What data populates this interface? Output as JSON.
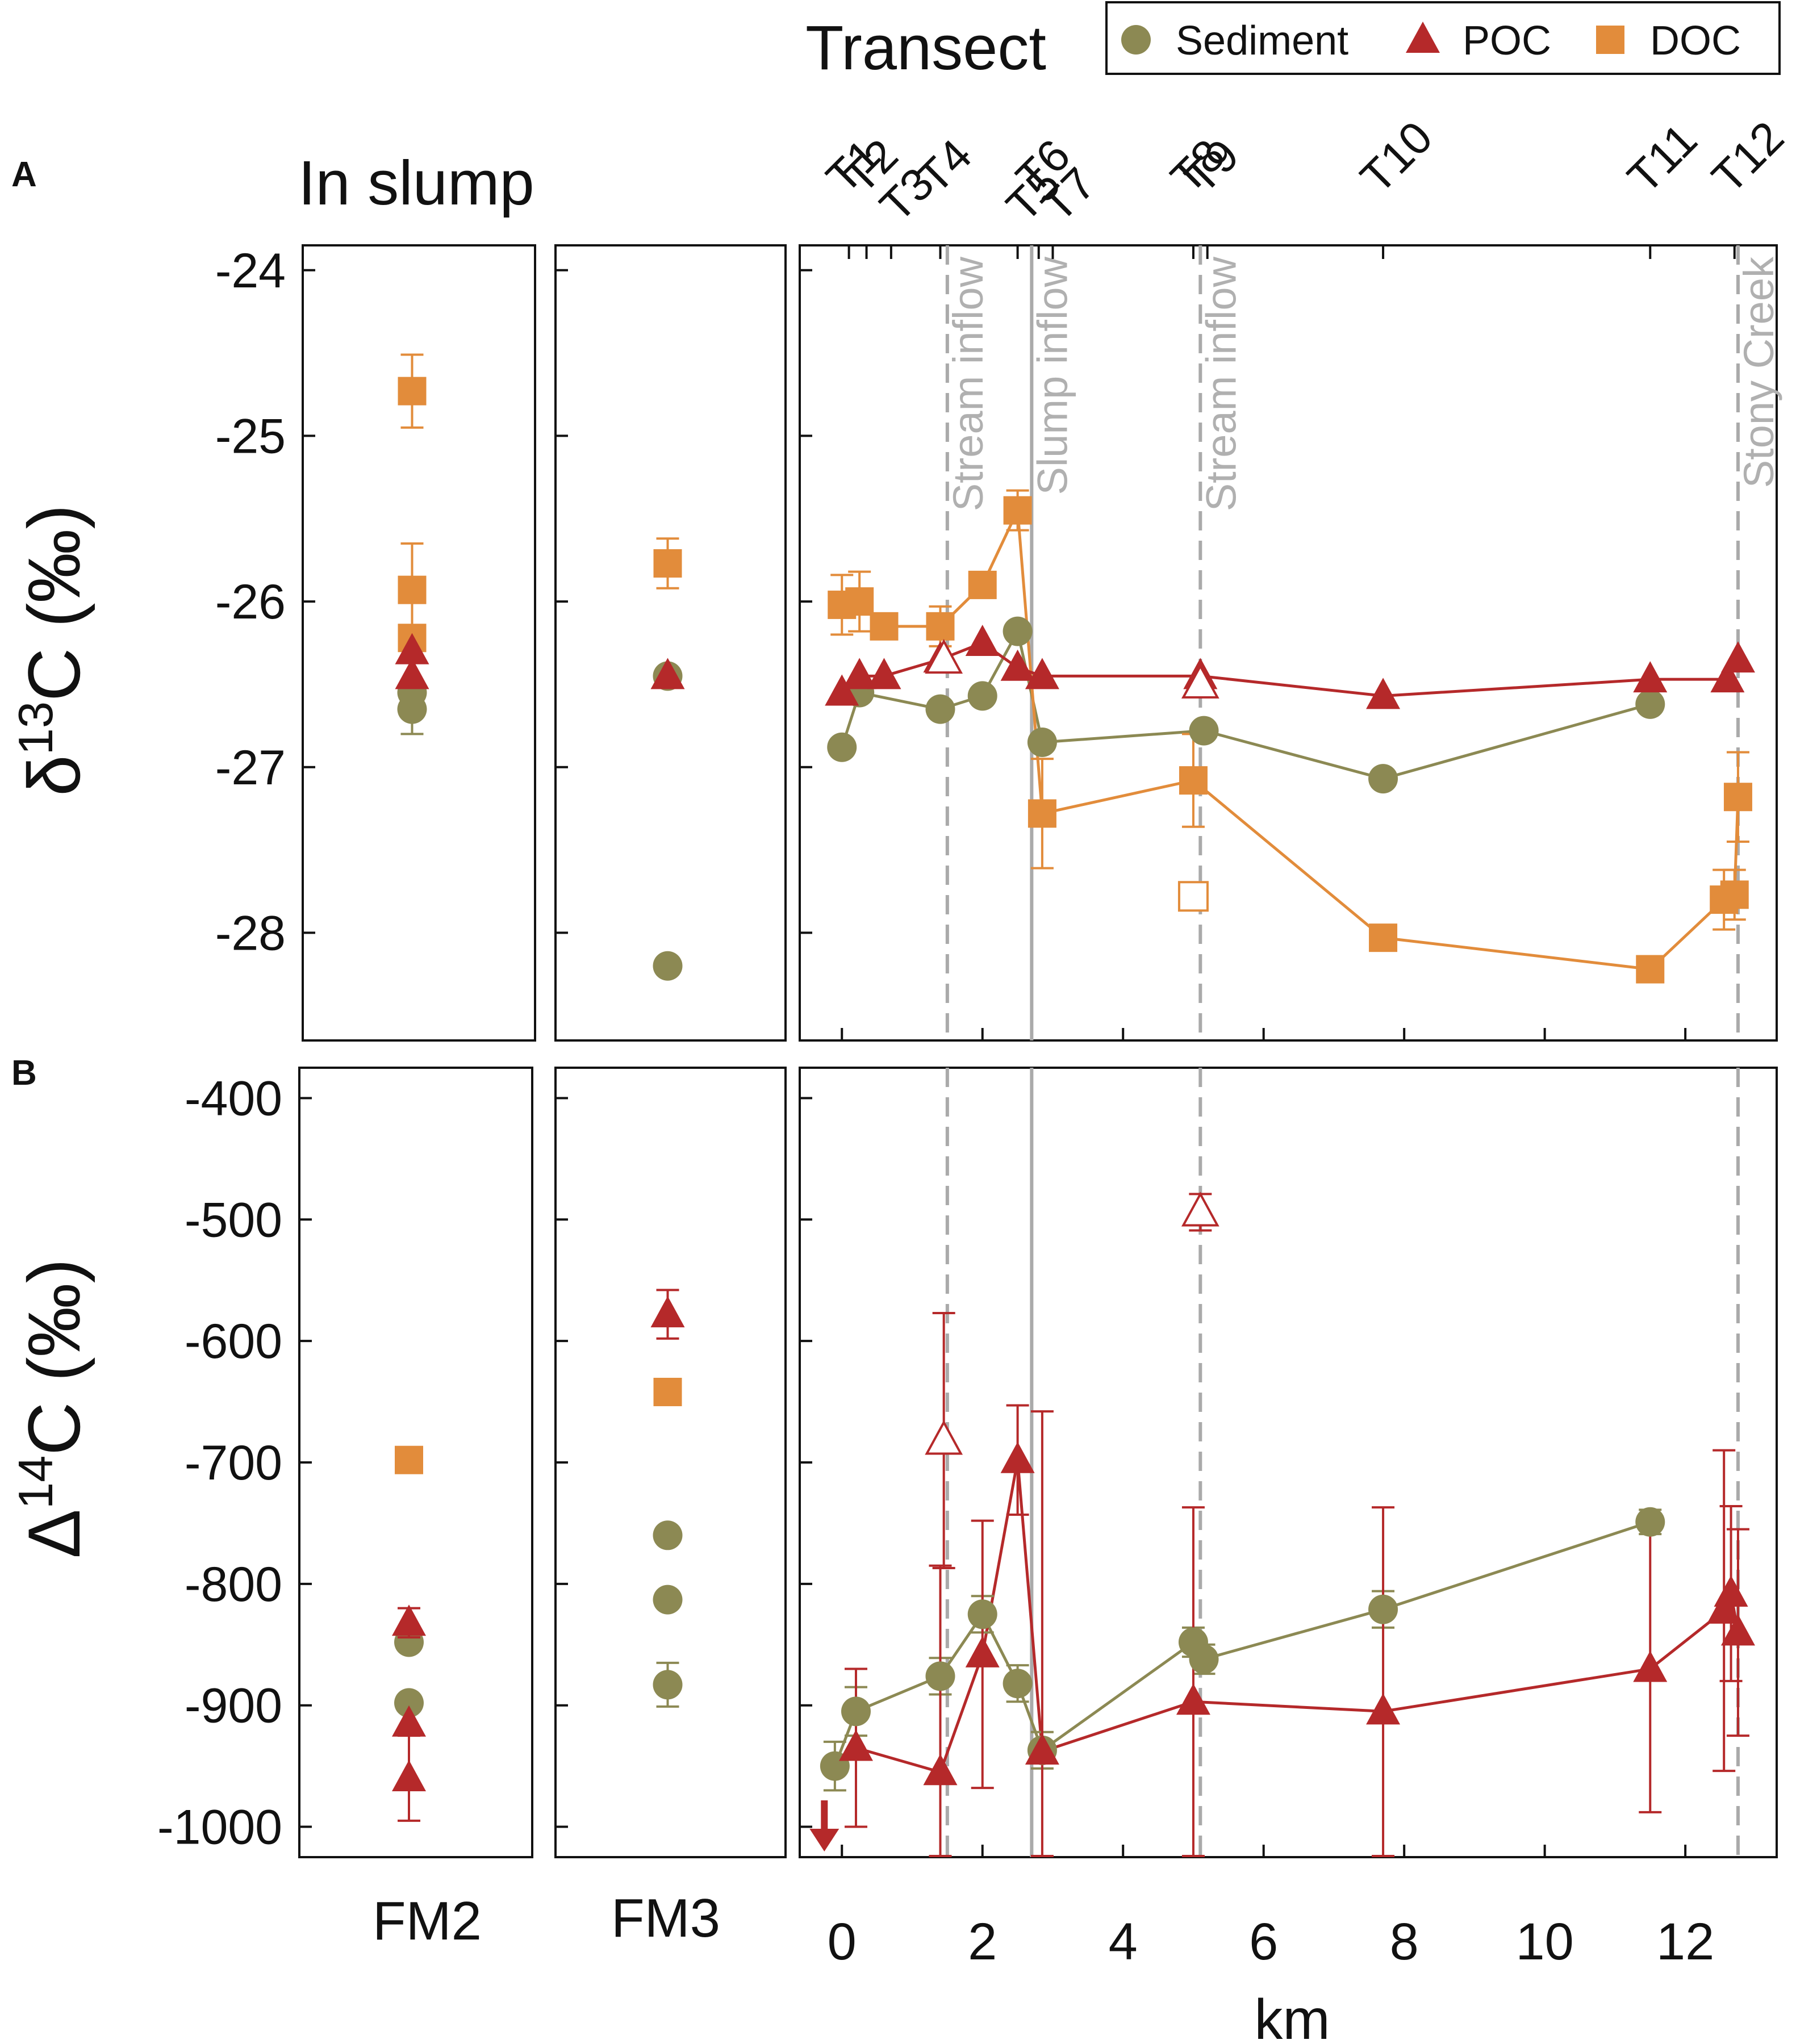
{
  "colors": {
    "sediment": "#8c8953",
    "poc": "#b5292a",
    "doc": "#e28c3b",
    "guide": "#aaaaaa",
    "axis": "#111111"
  },
  "legend": {
    "items": [
      {
        "key": "sediment",
        "label": "Sediment",
        "shape": "circle"
      },
      {
        "key": "poc",
        "label": "POC",
        "shape": "triangle"
      },
      {
        "key": "doc",
        "label": "DOC",
        "shape": "square"
      }
    ]
  },
  "header": {
    "transect_title": "Transect",
    "in_slump_title": "In slump"
  },
  "panels": {
    "A": {
      "letter": "A",
      "ylabel_main": "δ",
      "ylabel_sup": "13",
      "ylabel_rest": "C (‰)"
    },
    "B": {
      "letter": "B",
      "ylabel_main": "Δ",
      "ylabel_sup": "14",
      "ylabel_rest": "C (‰)"
    }
  },
  "xlabel": "km",
  "slump_labels": [
    "FM2",
    "FM3"
  ],
  "transects": [
    {
      "label": "T1",
      "km": 0.1
    },
    {
      "label": "T2",
      "km": 0.35
    },
    {
      "label": "T3",
      "km": 0.7
    },
    {
      "label": "T4",
      "km": 1.4
    },
    {
      "label": "T5",
      "km": 2.5
    },
    {
      "label": "T6",
      "km": 2.8
    },
    {
      "label": "T7",
      "km": 3.0
    },
    {
      "label": "T8",
      "km": 5.0
    },
    {
      "label": "T9",
      "km": 5.2
    },
    {
      "label": "T10",
      "km": 7.7
    },
    {
      "label": "T11",
      "km": 11.5
    },
    {
      "label": "T12",
      "km": 12.7
    }
  ],
  "guides": [
    {
      "km": 1.5,
      "style": "dashed",
      "label": "Stream inflow"
    },
    {
      "km": 2.7,
      "style": "solid",
      "label": "Slump inflow"
    },
    {
      "km": 5.1,
      "style": "dashed",
      "label": "Stream inflow"
    },
    {
      "km": 12.75,
      "style": "dashed",
      "label": "Stony Creek"
    }
  ],
  "chart_data": [
    {
      "panel": "A",
      "type": "scatter",
      "title": "",
      "xlabel": "km",
      "ylabel": "δ13C (‰)",
      "xlim": [
        -0.6,
        13.3
      ],
      "ylim": [
        -28.65,
        -23.85
      ],
      "xticks": [
        0,
        2,
        4,
        6,
        8,
        10,
        12
      ],
      "yticks": [
        -28,
        -27,
        -26,
        -25,
        -24
      ],
      "slump": {
        "FM2": {
          "sediment": [
            {
              "y": -26.65,
              "err": 0.15
            },
            {
              "y": -26.55,
              "err": 0
            }
          ],
          "poc": [
            {
              "y": -26.3,
              "err": 0
            },
            {
              "y": -26.45,
              "err": 0
            }
          ],
          "doc": [
            {
              "y": -24.73,
              "err": 0.22
            },
            {
              "y": -25.93,
              "err": 0.28
            },
            {
              "y": -26.22,
              "err": 0
            }
          ]
        },
        "FM3": {
          "sediment": [
            {
              "y": -26.45,
              "err": 0
            },
            {
              "y": -28.2,
              "err": 0
            }
          ],
          "poc": [
            {
              "y": -26.45,
              "err": 0
            }
          ],
          "doc": [
            {
              "y": -25.77,
              "err": 0.15
            }
          ]
        }
      },
      "series": [
        {
          "name": "Sediment",
          "key": "sediment",
          "values": [
            {
              "x": 0.0,
              "y": -26.88,
              "err": 0
            },
            {
              "x": 0.25,
              "y": -26.55,
              "err": 0
            },
            {
              "x": 1.4,
              "y": -26.65,
              "err": 0
            },
            {
              "x": 2.0,
              "y": -26.57,
              "err": 0
            },
            {
              "x": 2.5,
              "y": -26.18,
              "err": 0
            },
            {
              "x": 2.85,
              "y": -26.85,
              "err": 0
            },
            {
              "x": 5.15,
              "y": -26.78,
              "err": 0
            },
            {
              "x": 7.7,
              "y": -27.07,
              "err": 0
            },
            {
              "x": 11.5,
              "y": -26.62,
              "err": 0
            }
          ],
          "open": []
        },
        {
          "name": "POC",
          "key": "poc",
          "values": [
            {
              "x": 0.0,
              "y": -26.55,
              "err": 0
            },
            {
              "x": 0.25,
              "y": -26.45,
              "err": 0
            },
            {
              "x": 0.6,
              "y": -26.45,
              "err": 0
            },
            {
              "x": 1.4,
              "y": -26.35,
              "err": 0
            },
            {
              "x": 2.0,
              "y": -26.25,
              "err": 0
            },
            {
              "x": 2.5,
              "y": -26.4,
              "err": 0
            },
            {
              "x": 2.85,
              "y": -26.45,
              "err": 0
            },
            {
              "x": 5.1,
              "y": -26.45,
              "err": 0
            },
            {
              "x": 7.7,
              "y": -26.57,
              "err": 0
            },
            {
              "x": 11.5,
              "y": -26.47,
              "err": 0
            },
            {
              "x": 12.6,
              "y": -26.47,
              "err": 0
            },
            {
              "x": 12.75,
              "y": -26.35,
              "err": 0
            }
          ],
          "open": [
            {
              "x": 1.45,
              "y": -26.35,
              "err": 0
            },
            {
              "x": 5.1,
              "y": -26.5,
              "err": 0
            }
          ]
        },
        {
          "name": "DOC",
          "key": "doc",
          "values": [
            {
              "x": 0.0,
              "y": -26.02,
              "err": 0.18
            },
            {
              "x": 0.25,
              "y": -26.0,
              "err": 0.18
            },
            {
              "x": 0.6,
              "y": -26.15,
              "err": 0
            },
            {
              "x": 1.4,
              "y": -26.15,
              "err": 0.12
            },
            {
              "x": 2.0,
              "y": -25.9,
              "err": 0
            },
            {
              "x": 2.5,
              "y": -25.45,
              "err": 0.12
            },
            {
              "x": 2.85,
              "y": -27.28,
              "err": 0.33
            },
            {
              "x": 5.0,
              "y": -27.08,
              "err": 0.28
            },
            {
              "x": 7.7,
              "y": -28.03,
              "err": 0
            },
            {
              "x": 11.5,
              "y": -28.22,
              "err": 0
            },
            {
              "x": 12.55,
              "y": -27.8,
              "err": 0.18
            },
            {
              "x": 12.7,
              "y": -27.77,
              "err": 0.15
            },
            {
              "x": 12.75,
              "y": -27.18,
              "err": 0.27
            }
          ],
          "open": [
            {
              "x": 5.0,
              "y": -27.78,
              "err": 0
            }
          ]
        }
      ]
    },
    {
      "panel": "B",
      "type": "scatter",
      "title": "",
      "xlabel": "km",
      "ylabel": "Δ14C (‰)",
      "xlim": [
        -0.6,
        13.3
      ],
      "ylim": [
        -1025,
        -375
      ],
      "xticks": [
        0,
        2,
        4,
        6,
        8,
        10,
        12
      ],
      "yticks": [
        -1000,
        -900,
        -800,
        -700,
        -600,
        -500,
        -400
      ],
      "slump": {
        "FM2": {
          "sediment": [
            {
              "y": -848,
              "err": 0
            },
            {
              "y": -898,
              "err": 0
            }
          ],
          "poc": [
            {
              "y": -832,
              "err": 12
            },
            {
              "y": -915,
              "err": 0
            },
            {
              "y": -960,
              "err": 35
            }
          ],
          "doc": [
            {
              "y": -698,
              "err": 0
            }
          ]
        },
        "FM3": {
          "sediment": [
            {
              "y": -760,
              "err": 0
            },
            {
              "y": -813,
              "err": 0
            },
            {
              "y": -883,
              "err": 18
            }
          ],
          "poc": [
            {
              "y": -578,
              "err": 20
            }
          ],
          "doc": [
            {
              "y": -642,
              "err": 0
            }
          ]
        }
      },
      "series": [
        {
          "name": "Sediment",
          "key": "sediment",
          "values": [
            {
              "x": -0.1,
              "y": -950,
              "err": 20
            },
            {
              "x": 0.2,
              "y": -905,
              "err": 20
            },
            {
              "x": 1.4,
              "y": -876,
              "err": 15
            },
            {
              "x": 2.0,
              "y": -825,
              "err": 15
            },
            {
              "x": 2.5,
              "y": -882,
              "err": 15
            },
            {
              "x": 2.85,
              "y": -937,
              "err": 15
            },
            {
              "x": 5.0,
              "y": -848,
              "err": 12
            },
            {
              "x": 5.15,
              "y": -862,
              "err": 12
            },
            {
              "x": 7.7,
              "y": -821,
              "err": 15
            },
            {
              "x": 11.5,
              "y": -749,
              "err": 10
            }
          ],
          "open": []
        },
        {
          "name": "POC",
          "key": "poc",
          "values": [
            {
              "x": 0.2,
              "y": -935,
              "err": 65
            },
            {
              "x": 1.4,
              "y": -955,
              "err": 170
            },
            {
              "x": 2.0,
              "y": -858,
              "err": 110
            },
            {
              "x": 2.5,
              "y": -698,
              "err": 45
            },
            {
              "x": 2.85,
              "y": -938,
              "err": 280
            },
            {
              "x": 5.0,
              "y": -897,
              "err": 160
            },
            {
              "x": 7.7,
              "y": -905,
              "err": 168
            },
            {
              "x": 11.5,
              "y": -870,
              "err": 118
            },
            {
              "x": 12.55,
              "y": -822,
              "err": 132
            },
            {
              "x": 12.65,
              "y": -808,
              "err": 72
            },
            {
              "x": 12.75,
              "y": -840,
              "err": 85
            }
          ],
          "open": [
            {
              "x": 1.45,
              "y": -682,
              "err": 105
            },
            {
              "x": 5.1,
              "y": -494,
              "err": 15
            }
          ]
        },
        {
          "name": "DOC",
          "key": "doc",
          "values": [],
          "open": []
        }
      ],
      "below_range_marker": {
        "key": "poc",
        "x": -0.25,
        "note": "arrow"
      }
    }
  ]
}
